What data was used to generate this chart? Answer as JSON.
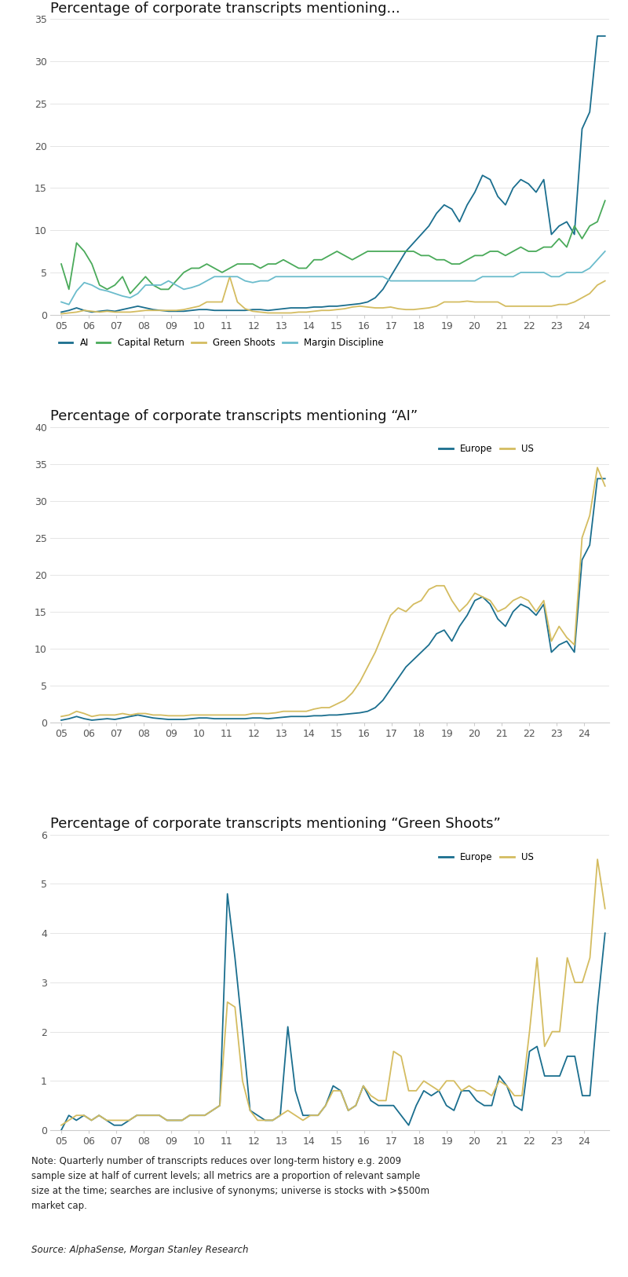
{
  "chart1_title": "Percentage of corporate transcripts mentioning...",
  "chart2_title": "Percentage of corporate transcripts mentioning “AI”",
  "chart3_title": "Percentage of corporate transcripts mentioning “Green Shoots”",
  "note_main": "Note: Quarterly number of transcripts reduces over long-term history e.g. 2009\nsample size at half of current levels; all metrics are a proportion of relevant sample\nsize at the time; searches are inclusive of synonyms; universe is stocks with >$500m\nmarket cap.",
  "note_source": "Source: AlphaSense, Morgan Stanley Research",
  "color_ai": "#1a6e8e",
  "color_capital_return": "#4aaa5a",
  "color_green_shoots": "#d4bc60",
  "color_margin_discipline": "#6bbccc",
  "color_europe": "#1a6e8e",
  "color_us": "#d4bc60",
  "chart1_ylim": [
    0,
    35
  ],
  "chart2_ylim": [
    0,
    40
  ],
  "chart3_ylim": [
    0,
    6
  ],
  "chart1_yticks": [
    0,
    5,
    10,
    15,
    20,
    25,
    30,
    35
  ],
  "chart2_yticks": [
    0,
    5,
    10,
    15,
    20,
    25,
    30,
    35,
    40
  ],
  "chart3_yticks": [
    0,
    1,
    2,
    3,
    4,
    5,
    6
  ],
  "ai_combined": [
    0.3,
    0.5,
    0.8,
    0.5,
    0.3,
    0.4,
    0.5,
    0.4,
    0.6,
    0.8,
    1.0,
    0.8,
    0.6,
    0.5,
    0.4,
    0.4,
    0.4,
    0.5,
    0.6,
    0.6,
    0.5,
    0.5,
    0.5,
    0.5,
    0.5,
    0.6,
    0.6,
    0.5,
    0.6,
    0.7,
    0.8,
    0.8,
    0.8,
    0.9,
    0.9,
    1.0,
    1.0,
    1.1,
    1.2,
    1.3,
    1.5,
    2.0,
    3.0,
    4.5,
    6.0,
    7.5,
    8.5,
    9.5,
    10.5,
    12.0,
    13.0,
    12.5,
    11.0,
    13.0,
    14.5,
    16.5,
    16.0,
    14.0,
    13.0,
    15.0,
    16.0,
    15.5,
    14.5,
    16.0,
    9.5,
    10.5,
    11.0,
    9.5,
    22.0,
    24.0,
    33.0,
    33.0
  ],
  "capital_return_combined": [
    6.0,
    3.0,
    8.5,
    7.5,
    6.0,
    3.5,
    3.0,
    3.5,
    4.5,
    2.5,
    3.5,
    4.5,
    3.5,
    3.0,
    3.0,
    4.0,
    5.0,
    5.5,
    5.5,
    6.0,
    5.5,
    5.0,
    5.5,
    6.0,
    6.0,
    6.0,
    5.5,
    6.0,
    6.0,
    6.5,
    6.0,
    5.5,
    5.5,
    6.5,
    6.5,
    7.0,
    7.5,
    7.0,
    6.5,
    7.0,
    7.5,
    7.5,
    7.5,
    7.5,
    7.5,
    7.5,
    7.5,
    7.0,
    7.0,
    6.5,
    6.5,
    6.0,
    6.0,
    6.5,
    7.0,
    7.0,
    7.5,
    7.5,
    7.0,
    7.5,
    8.0,
    7.5,
    7.5,
    8.0,
    8.0,
    9.0,
    8.0,
    10.5,
    9.0,
    10.5,
    11.0,
    13.5
  ],
  "green_shoots_combined": [
    0.1,
    0.2,
    0.3,
    0.5,
    0.4,
    0.3,
    0.4,
    0.3,
    0.3,
    0.3,
    0.4,
    0.5,
    0.5,
    0.5,
    0.5,
    0.5,
    0.6,
    0.8,
    1.0,
    1.5,
    1.5,
    1.5,
    4.5,
    1.5,
    0.7,
    0.4,
    0.3,
    0.2,
    0.2,
    0.2,
    0.2,
    0.3,
    0.3,
    0.4,
    0.5,
    0.5,
    0.6,
    0.7,
    0.9,
    1.0,
    0.9,
    0.8,
    0.8,
    0.9,
    0.7,
    0.6,
    0.6,
    0.7,
    0.8,
    1.0,
    1.5,
    1.5,
    1.5,
    1.6,
    1.5,
    1.5,
    1.5,
    1.5,
    1.0,
    1.0,
    1.0,
    1.0,
    1.0,
    1.0,
    1.0,
    1.2,
    1.2,
    1.5,
    2.0,
    2.5,
    3.5,
    4.0
  ],
  "margin_discipline_combined": [
    1.5,
    1.2,
    2.8,
    3.8,
    3.5,
    3.0,
    2.8,
    2.5,
    2.2,
    2.0,
    2.5,
    3.5,
    3.5,
    3.5,
    4.0,
    3.5,
    3.0,
    3.2,
    3.5,
    4.0,
    4.5,
    4.5,
    4.5,
    4.5,
    4.0,
    3.8,
    4.0,
    4.0,
    4.5,
    4.5,
    4.5,
    4.5,
    4.5,
    4.5,
    4.5,
    4.5,
    4.5,
    4.5,
    4.5,
    4.5,
    4.5,
    4.5,
    4.5,
    4.0,
    4.0,
    4.0,
    4.0,
    4.0,
    4.0,
    4.0,
    4.0,
    4.0,
    4.0,
    4.0,
    4.0,
    4.5,
    4.5,
    4.5,
    4.5,
    4.5,
    5.0,
    5.0,
    5.0,
    5.0,
    4.5,
    4.5,
    5.0,
    5.0,
    5.0,
    5.5,
    6.5,
    7.5
  ],
  "ai_europe": [
    0.3,
    0.5,
    0.8,
    0.5,
    0.3,
    0.4,
    0.5,
    0.4,
    0.6,
    0.8,
    1.0,
    0.8,
    0.6,
    0.5,
    0.4,
    0.4,
    0.4,
    0.5,
    0.6,
    0.6,
    0.5,
    0.5,
    0.5,
    0.5,
    0.5,
    0.6,
    0.6,
    0.5,
    0.6,
    0.7,
    0.8,
    0.8,
    0.8,
    0.9,
    0.9,
    1.0,
    1.0,
    1.1,
    1.2,
    1.3,
    1.5,
    2.0,
    3.0,
    4.5,
    6.0,
    7.5,
    8.5,
    9.5,
    10.5,
    12.0,
    12.5,
    11.0,
    13.0,
    14.5,
    16.5,
    17.0,
    16.0,
    14.0,
    13.0,
    15.0,
    16.0,
    15.5,
    14.5,
    16.0,
    9.5,
    10.5,
    11.0,
    9.5,
    22.0,
    24.0,
    33.0,
    33.0
  ],
  "ai_us": [
    0.8,
    1.0,
    1.5,
    1.2,
    0.8,
    1.0,
    1.0,
    1.0,
    1.2,
    1.0,
    1.2,
    1.2,
    1.0,
    1.0,
    0.9,
    0.9,
    0.9,
    1.0,
    1.0,
    1.0,
    1.0,
    1.0,
    1.0,
    1.0,
    1.0,
    1.2,
    1.2,
    1.2,
    1.3,
    1.5,
    1.5,
    1.5,
    1.5,
    1.8,
    2.0,
    2.0,
    2.5,
    3.0,
    4.0,
    5.5,
    7.5,
    9.5,
    12.0,
    14.5,
    15.5,
    15.0,
    16.0,
    16.5,
    18.0,
    18.5,
    18.5,
    16.5,
    15.0,
    16.0,
    17.5,
    17.0,
    16.5,
    15.0,
    15.5,
    16.5,
    17.0,
    16.5,
    15.0,
    16.5,
    11.0,
    13.0,
    11.5,
    10.5,
    25.0,
    28.0,
    34.5,
    32.0
  ],
  "gs_europe": [
    0.0,
    0.3,
    0.2,
    0.3,
    0.2,
    0.3,
    0.2,
    0.1,
    0.1,
    0.2,
    0.3,
    0.3,
    0.3,
    0.3,
    0.2,
    0.2,
    0.2,
    0.3,
    0.3,
    0.3,
    0.4,
    0.5,
    4.8,
    3.5,
    2.0,
    0.4,
    0.3,
    0.2,
    0.2,
    0.3,
    2.1,
    0.8,
    0.3,
    0.3,
    0.3,
    0.5,
    0.9,
    0.8,
    0.4,
    0.5,
    0.9,
    0.6,
    0.5,
    0.5,
    0.5,
    0.3,
    0.1,
    0.5,
    0.8,
    0.7,
    0.8,
    0.5,
    0.4,
    0.8,
    0.8,
    0.6,
    0.5,
    0.5,
    1.1,
    0.9,
    0.5,
    0.4,
    1.6,
    1.7,
    1.1,
    1.1,
    1.1,
    1.5,
    1.5,
    0.7,
    0.7,
    2.5,
    4.0
  ],
  "gs_us": [
    0.1,
    0.2,
    0.3,
    0.3,
    0.2,
    0.3,
    0.2,
    0.2,
    0.2,
    0.2,
    0.3,
    0.3,
    0.3,
    0.3,
    0.2,
    0.2,
    0.2,
    0.3,
    0.3,
    0.3,
    0.4,
    0.5,
    2.6,
    2.5,
    1.0,
    0.4,
    0.2,
    0.2,
    0.2,
    0.3,
    0.4,
    0.3,
    0.2,
    0.3,
    0.3,
    0.5,
    0.8,
    0.8,
    0.4,
    0.5,
    0.9,
    0.7,
    0.6,
    0.6,
    1.6,
    1.5,
    0.8,
    0.8,
    1.0,
    0.9,
    0.8,
    1.0,
    1.0,
    0.8,
    0.9,
    0.8,
    0.8,
    0.7,
    1.0,
    0.9,
    0.7,
    0.7,
    2.0,
    3.5,
    1.7,
    2.0,
    2.0,
    3.5,
    3.0,
    3.0,
    3.5,
    5.5,
    4.5
  ]
}
